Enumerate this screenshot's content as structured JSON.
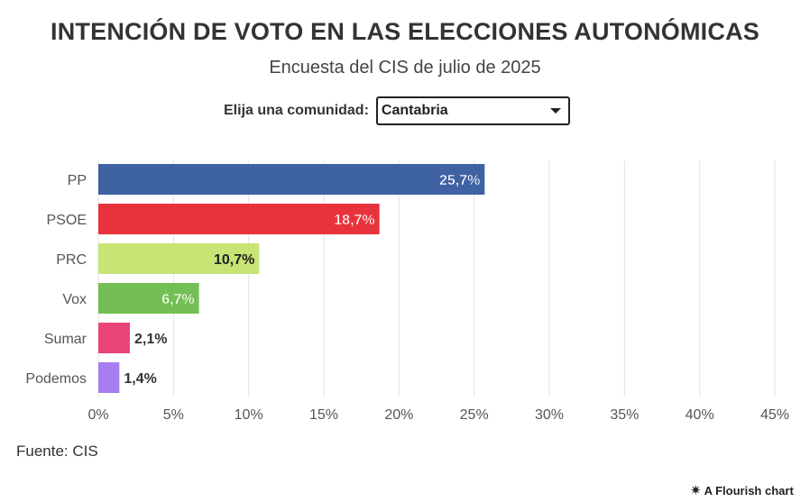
{
  "header": {
    "title": "INTENCIÓN DE VOTO EN LAS ELECCIONES AUTONÓMICAS",
    "subtitle": "Encuesta del CIS de julio de 2025"
  },
  "control": {
    "label": "Elija una comunidad:",
    "selected": "Cantabria"
  },
  "footer": {
    "source": "Fuente: CIS",
    "credit": "A Flourish chart",
    "credit_icon": "flourish-star-icon"
  },
  "chart_data": {
    "type": "bar",
    "orientation": "horizontal",
    "title": "INTENCIÓN DE VOTO EN LAS ELECCIONES AUTONÓMICAS",
    "subtitle": "Encuesta del CIS de julio de 2025",
    "categories": [
      "PP",
      "PSOE",
      "PRC",
      "Vox",
      "Sumar",
      "Podemos"
    ],
    "values": [
      25.7,
      18.7,
      10.7,
      6.7,
      2.1,
      1.4
    ],
    "labels": [
      "25,7%",
      "18,7%",
      "10,7%",
      "6,7%",
      "2,1%",
      "1,4%"
    ],
    "colors": [
      "#3f62a3",
      "#e8323c",
      "#c7e475",
      "#74bf55",
      "#e94576",
      "#a57ef0"
    ],
    "label_colors": [
      "#ffffff",
      "#ffffff",
      "#222222",
      "#ffffff",
      "#333333",
      "#333333"
    ],
    "xlim": [
      0,
      45
    ],
    "xticks": [
      0,
      5,
      10,
      15,
      20,
      25,
      30,
      35,
      40,
      45
    ],
    "xtick_labels": [
      "0%",
      "5%",
      "10%",
      "15%",
      "20%",
      "25%",
      "30%",
      "35%",
      "40%",
      "45%"
    ],
    "xlabel": "",
    "ylabel": "",
    "grid": true
  }
}
